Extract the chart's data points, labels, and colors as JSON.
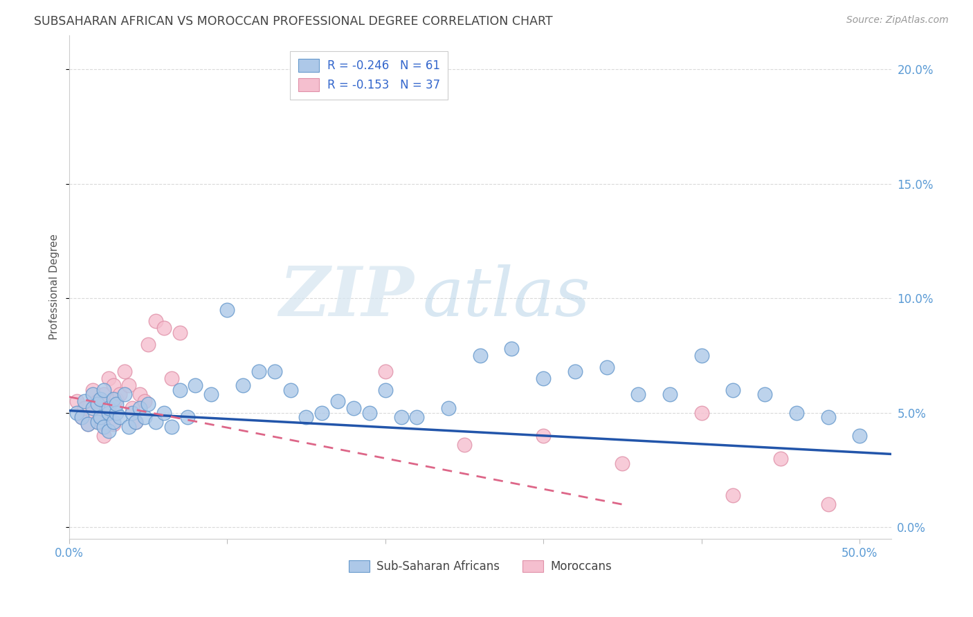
{
  "title": "SUBSAHARAN AFRICAN VS MOROCCAN PROFESSIONAL DEGREE CORRELATION CHART",
  "source": "Source: ZipAtlas.com",
  "ylabel": "Professional Degree",
  "xlim": [
    0.0,
    0.52
  ],
  "ylim": [
    -0.005,
    0.215
  ],
  "yticks": [
    0.0,
    0.05,
    0.1,
    0.15,
    0.2
  ],
  "xticks": [
    0.0,
    0.1,
    0.2,
    0.3,
    0.4,
    0.5
  ],
  "watermark_zip": "ZIP",
  "watermark_atlas": "atlas",
  "background_color": "#ffffff",
  "grid_color": "#d0d0d0",
  "blue_color": "#adc8e8",
  "blue_edge_color": "#6699cc",
  "pink_color": "#f5bfcf",
  "pink_edge_color": "#e090a8",
  "blue_line_color": "#2255aa",
  "pink_line_color": "#dd6688",
  "title_color": "#444444",
  "axis_label_color": "#5b9bd5",
  "ylabel_color": "#555555",
  "legend_border_color": "#cccccc",
  "legend_text_color": "#3366cc",
  "blue_R": -0.246,
  "blue_N": 61,
  "pink_R": -0.153,
  "pink_N": 37,
  "label_blue": "Sub-Saharan Africans",
  "label_pink": "Moroccans",
  "blue_scatter_x": [
    0.005,
    0.008,
    0.01,
    0.012,
    0.015,
    0.015,
    0.018,
    0.018,
    0.02,
    0.02,
    0.022,
    0.022,
    0.025,
    0.025,
    0.025,
    0.028,
    0.028,
    0.03,
    0.03,
    0.032,
    0.035,
    0.038,
    0.04,
    0.042,
    0.045,
    0.048,
    0.05,
    0.055,
    0.06,
    0.065,
    0.07,
    0.075,
    0.08,
    0.09,
    0.1,
    0.11,
    0.12,
    0.13,
    0.14,
    0.15,
    0.16,
    0.17,
    0.18,
    0.19,
    0.2,
    0.21,
    0.22,
    0.24,
    0.26,
    0.28,
    0.3,
    0.32,
    0.34,
    0.36,
    0.38,
    0.4,
    0.42,
    0.44,
    0.46,
    0.48,
    0.5
  ],
  "blue_scatter_y": [
    0.05,
    0.048,
    0.055,
    0.045,
    0.052,
    0.058,
    0.046,
    0.054,
    0.048,
    0.056,
    0.044,
    0.06,
    0.05,
    0.042,
    0.052,
    0.056,
    0.046,
    0.05,
    0.054,
    0.048,
    0.058,
    0.044,
    0.05,
    0.046,
    0.052,
    0.048,
    0.054,
    0.046,
    0.05,
    0.044,
    0.06,
    0.048,
    0.062,
    0.058,
    0.095,
    0.062,
    0.068,
    0.068,
    0.06,
    0.048,
    0.05,
    0.055,
    0.052,
    0.05,
    0.06,
    0.048,
    0.048,
    0.052,
    0.075,
    0.078,
    0.065,
    0.068,
    0.07,
    0.058,
    0.058,
    0.075,
    0.06,
    0.058,
    0.05,
    0.048,
    0.04
  ],
  "pink_scatter_x": [
    0.005,
    0.008,
    0.01,
    0.012,
    0.015,
    0.015,
    0.018,
    0.018,
    0.02,
    0.02,
    0.022,
    0.022,
    0.025,
    0.025,
    0.028,
    0.028,
    0.03,
    0.032,
    0.035,
    0.038,
    0.04,
    0.042,
    0.045,
    0.048,
    0.05,
    0.055,
    0.06,
    0.065,
    0.07,
    0.2,
    0.25,
    0.3,
    0.35,
    0.4,
    0.42,
    0.45,
    0.48
  ],
  "pink_scatter_y": [
    0.055,
    0.048,
    0.052,
    0.045,
    0.05,
    0.06,
    0.046,
    0.055,
    0.048,
    0.056,
    0.04,
    0.058,
    0.065,
    0.05,
    0.062,
    0.045,
    0.056,
    0.058,
    0.068,
    0.062,
    0.052,
    0.046,
    0.058,
    0.055,
    0.08,
    0.09,
    0.087,
    0.065,
    0.085,
    0.068,
    0.036,
    0.04,
    0.028,
    0.05,
    0.014,
    0.03,
    0.01
  ],
  "blue_line_x": [
    0.0,
    0.52
  ],
  "blue_line_y": [
    0.051,
    0.032
  ],
  "pink_line_x": [
    0.0,
    0.35
  ],
  "pink_line_y": [
    0.057,
    0.01
  ]
}
